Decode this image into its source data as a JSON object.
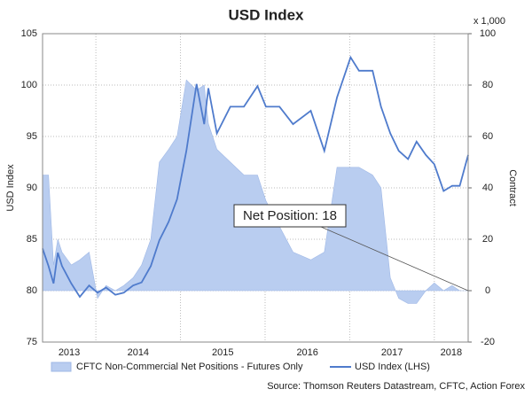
{
  "chart_data": {
    "type": "line",
    "title": "USD Index",
    "ylabel": "USD Index",
    "y2label": "Contract",
    "y2unit": "x 1,000",
    "source": "Source: Thomson Reuters Datastream, CFTC, Action Forex",
    "annotation": "Net Position: 18",
    "x": [
      2013.37,
      2013.44,
      2013.5,
      2013.55,
      2013.6,
      2013.71,
      2013.81,
      2013.92,
      2014.02,
      2014.12,
      2014.23,
      2014.33,
      2014.44,
      2014.54,
      2014.65,
      2014.75,
      2014.86,
      2014.96,
      2015.07,
      2015.19,
      2015.28,
      2015.33,
      2015.43,
      2015.59,
      2015.75,
      2015.91,
      2016.01,
      2016.17,
      2016.33,
      2016.54,
      2016.7,
      2016.85,
      2017.01,
      2017.11,
      2017.27,
      2017.37,
      2017.48,
      2017.58,
      2017.69,
      2017.79,
      2017.9,
      2018.0,
      2018.11,
      2018.21,
      2018.3,
      2018.4
    ],
    "series": [
      {
        "name": "CFTC Non-Commercial Net Positions - Futures Only",
        "kind": "area",
        "axis": "y2",
        "color": "#b9cdf0",
        "values": [
          45,
          45,
          10,
          20,
          15,
          10,
          12,
          15,
          -3,
          2,
          0,
          2,
          5,
          10,
          20,
          50,
          55,
          60,
          82,
          78,
          80,
          65,
          55,
          50,
          45,
          45,
          35,
          25,
          15,
          12,
          15,
          48,
          48,
          48,
          45,
          40,
          5,
          -3,
          -5,
          -5,
          0,
          3,
          0,
          2,
          0,
          0
        ]
      },
      {
        "name": "USD Index (LHS)",
        "kind": "line",
        "axis": "y",
        "color": "#4f7bcc",
        "values": [
          84.1,
          82.4,
          80.7,
          83.7,
          82.4,
          80.7,
          79.4,
          80.5,
          79.8,
          80.3,
          79.6,
          79.8,
          80.5,
          80.8,
          82.4,
          84.9,
          86.7,
          88.9,
          93.6,
          100.1,
          96.2,
          99.7,
          95.3,
          97.9,
          97.9,
          99.9,
          97.9,
          97.9,
          96.2,
          97.5,
          93.6,
          98.8,
          102.7,
          101.4,
          101.4,
          97.9,
          95.3,
          93.6,
          92.8,
          94.5,
          93.2,
          92.3,
          89.7,
          90.2,
          90.2,
          93.2
        ]
      }
    ],
    "xlim": [
      2013.37,
      2018.4
    ],
    "xticks": [
      2013,
      2014,
      2015,
      2016,
      2017,
      2018
    ],
    "ylim": [
      75,
      105
    ],
    "yticks": [
      75,
      80,
      85,
      90,
      95,
      100,
      105
    ],
    "y2lim": [
      -20,
      100
    ],
    "y2ticks": [
      -20,
      0,
      20,
      40,
      60,
      80,
      100
    ],
    "grid": true
  }
}
